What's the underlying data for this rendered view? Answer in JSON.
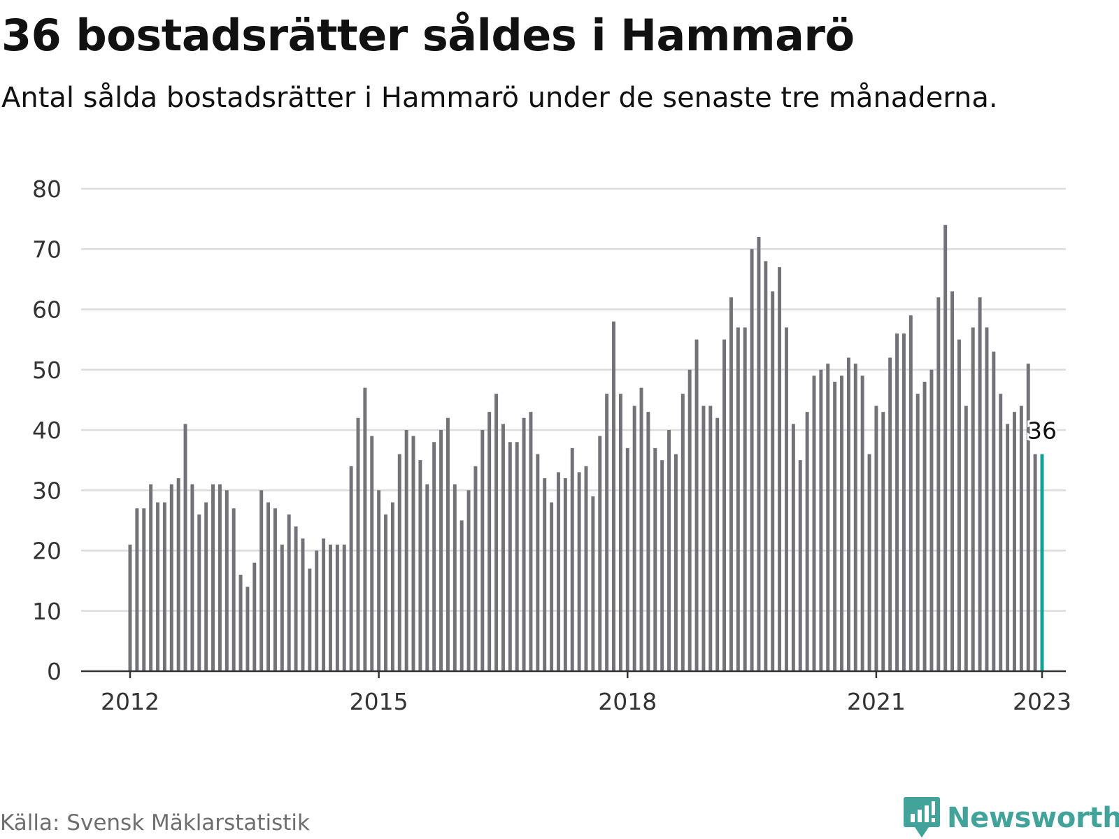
{
  "title": "36 bostadsrätter såldes i Hammarö",
  "subtitle": "Antal sålda bostadsrätter i Hammarö under de senaste tre månaderna.",
  "source": "Källa: Svensk Mäklarstatistik",
  "brand": {
    "name": "Newsworthy",
    "icon": "newsworthy-logo-icon"
  },
  "colors": {
    "bar": "#737278",
    "highlight": "#10a296",
    "grid": "#dcdcdc",
    "axis": "#333333",
    "brand": "#42a39a"
  },
  "chart_data": {
    "type": "bar",
    "x_start": "2012-01",
    "frequency": "monthly",
    "values": [
      21,
      27,
      27,
      31,
      28,
      28,
      31,
      32,
      41,
      31,
      26,
      28,
      31,
      31,
      30,
      27,
      16,
      14,
      18,
      30,
      28,
      27,
      21,
      26,
      24,
      22,
      17,
      20,
      22,
      21,
      21,
      21,
      34,
      42,
      47,
      39,
      30,
      26,
      28,
      36,
      40,
      39,
      35,
      31,
      38,
      40,
      42,
      31,
      25,
      30,
      34,
      40,
      43,
      46,
      41,
      38,
      38,
      42,
      43,
      36,
      32,
      28,
      33,
      32,
      37,
      33,
      34,
      29,
      39,
      46,
      58,
      46,
      37,
      44,
      47,
      43,
      37,
      35,
      40,
      36,
      46,
      50,
      55,
      44,
      44,
      42,
      55,
      62,
      57,
      57,
      70,
      72,
      68,
      63,
      67,
      57,
      41,
      35,
      43,
      49,
      50,
      51,
      48,
      49,
      52,
      51,
      49,
      36,
      44,
      43,
      52,
      56,
      56,
      59,
      46,
      48,
      50,
      62,
      74,
      63,
      55,
      44,
      57,
      62,
      57,
      53,
      46,
      41,
      43,
      44,
      51,
      36,
      36
    ],
    "highlight_last": true,
    "highlight_label": "36",
    "x_ticks": [
      "2012",
      "2015",
      "2018",
      "2021",
      "2023"
    ],
    "x_tick_index": [
      0,
      36,
      72,
      108,
      132
    ],
    "y_ticks": [
      "0",
      "10",
      "20",
      "30",
      "40",
      "50",
      "60",
      "70",
      "80"
    ],
    "ylim": [
      0,
      80
    ],
    "grid": true,
    "legend": "none"
  }
}
